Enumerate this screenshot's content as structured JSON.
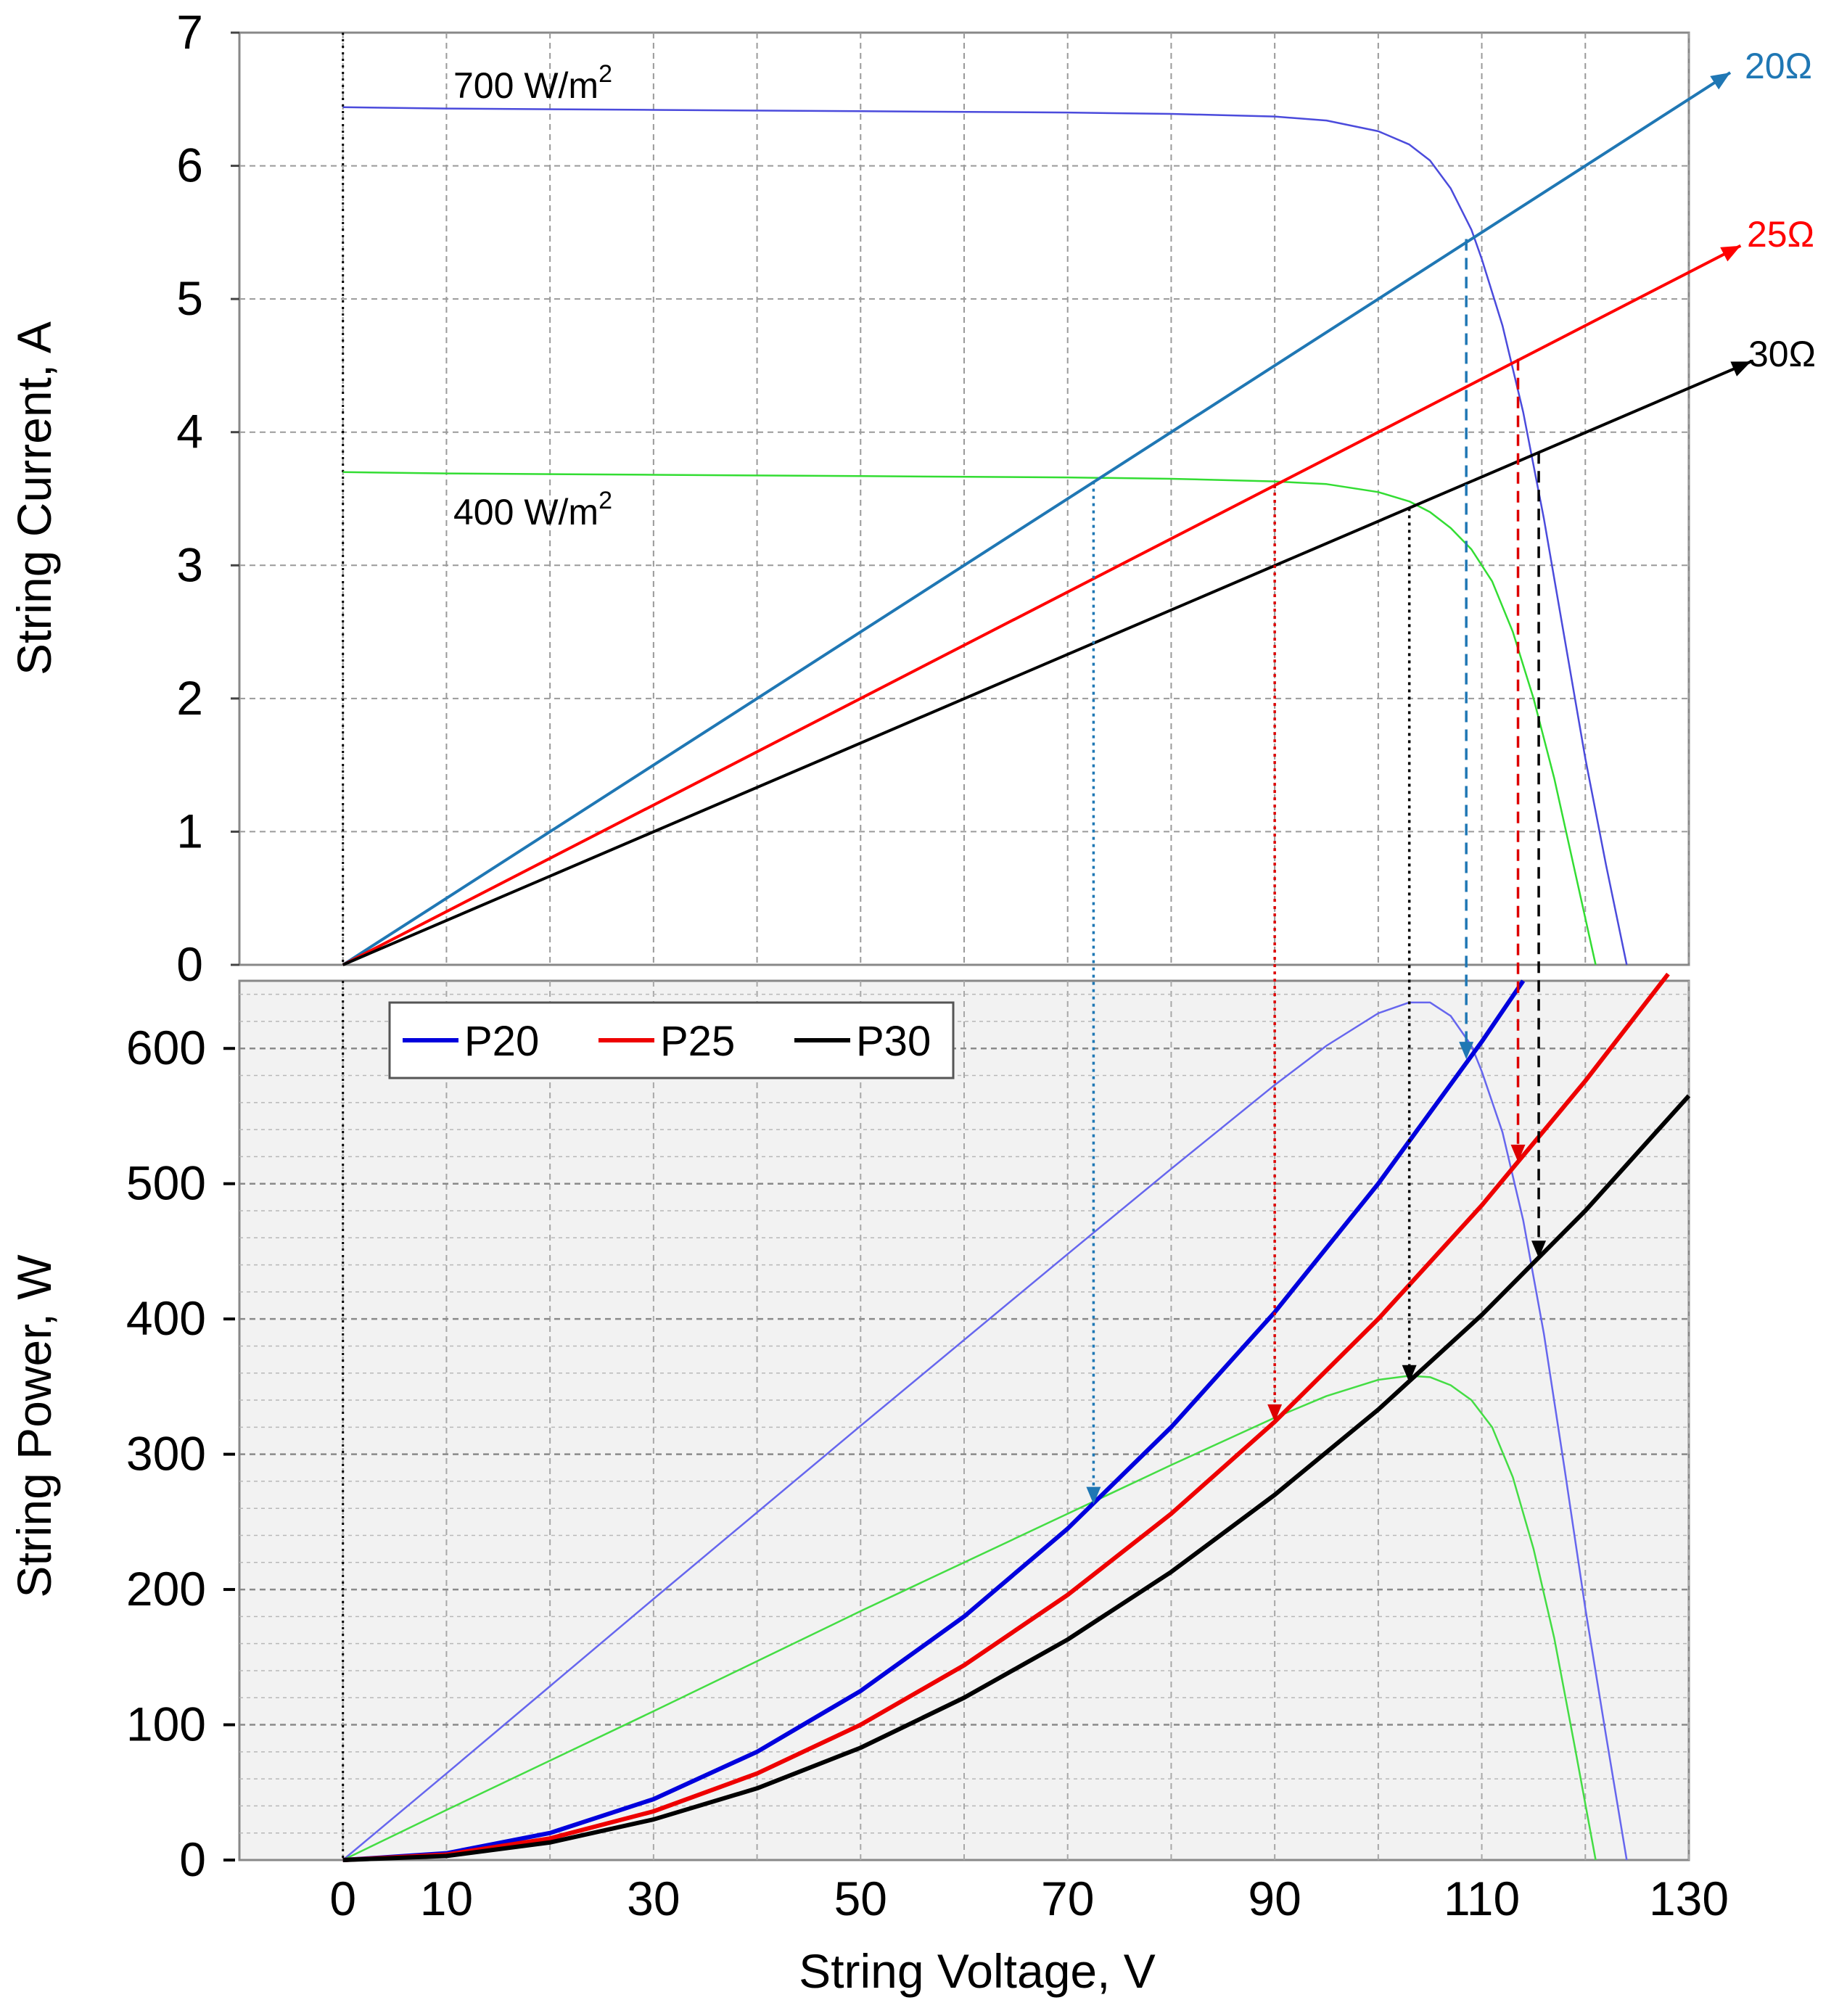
{
  "chart_data": [
    {
      "type": "line",
      "panel": "top",
      "ylabel": "String Current, A",
      "ylim": [
        0,
        7
      ],
      "xlim": [
        -10,
        130
      ],
      "yticks": [
        "0",
        "1",
        "2",
        "3",
        "4",
        "5",
        "6",
        "7"
      ],
      "grid": true,
      "series": [
        {
          "name": "700 W/m2",
          "color": "#4b4bdc",
          "x": [
            0,
            10,
            30,
            50,
            70,
            80,
            90,
            95,
            100,
            103,
            105,
            107,
            109,
            110,
            112,
            114,
            116,
            118,
            120,
            122,
            124
          ],
          "y": [
            6.44,
            6.43,
            6.42,
            6.41,
            6.4,
            6.39,
            6.37,
            6.34,
            6.26,
            6.16,
            6.04,
            5.83,
            5.52,
            5.3,
            4.8,
            4.15,
            3.35,
            2.45,
            1.55,
            0.75,
            0
          ]
        },
        {
          "name": "400 W/m2",
          "color": "#33dd33",
          "x": [
            0,
            10,
            30,
            50,
            70,
            80,
            90,
            95,
            100,
            103,
            105,
            107,
            109,
            111,
            113,
            115,
            117,
            119,
            121
          ],
          "y": [
            3.7,
            3.69,
            3.68,
            3.67,
            3.66,
            3.65,
            3.63,
            3.61,
            3.55,
            3.48,
            3.4,
            3.28,
            3.12,
            2.88,
            2.5,
            2.0,
            1.4,
            0.7,
            0
          ]
        },
        {
          "name": "20Ω",
          "color": "#1f77b4",
          "x": [
            0,
            134
          ],
          "y": [
            0,
            6.7
          ]
        },
        {
          "name": "25Ω",
          "color": "#ff0000",
          "x": [
            0,
            135
          ],
          "y": [
            0,
            5.4
          ]
        },
        {
          "name": "30Ω",
          "color": "#000000",
          "x": [
            0,
            136
          ],
          "y": [
            0,
            4.53
          ]
        }
      ],
      "annotations": [
        {
          "text": "700 W/m",
          "sup": "2"
        },
        {
          "text": "400 W/m",
          "sup": "2"
        },
        {
          "text": "20Ω",
          "color": "#1f77b4"
        },
        {
          "text": "25Ω",
          "color": "#ff0000"
        },
        {
          "text": "30Ω",
          "color": "#000000"
        }
      ]
    },
    {
      "type": "line",
      "panel": "bottom",
      "xlabel": "String Voltage, V",
      "ylabel": "String Power, W",
      "ylim": [
        0,
        650
      ],
      "xlim": [
        -10,
        130
      ],
      "yticks": [
        "0",
        "100",
        "200",
        "300",
        "400",
        "500",
        "600"
      ],
      "xticks": [
        "0",
        "10",
        "30",
        "50",
        "70",
        "90",
        "110",
        "130"
      ],
      "grid": true,
      "legend": "top-left",
      "series": [
        {
          "name": "P20",
          "color": "#0000dd",
          "x": [
            0,
            10,
            20,
            30,
            40,
            50,
            60,
            70,
            80,
            90,
            100,
            110,
            114
          ],
          "y": [
            0,
            5,
            20,
            45,
            80,
            125,
            180,
            245,
            320,
            405,
            500,
            605,
            650
          ]
        },
        {
          "name": "P25",
          "color": "#ee0000",
          "x": [
            0,
            10,
            20,
            30,
            40,
            50,
            60,
            70,
            80,
            90,
            100,
            110,
            120,
            128
          ],
          "y": [
            0,
            4,
            16,
            36,
            64,
            100,
            144,
            196,
            256,
            324,
            400,
            484,
            576,
            655
          ]
        },
        {
          "name": "P30",
          "color": "#000000",
          "x": [
            0,
            10,
            20,
            30,
            40,
            50,
            60,
            70,
            80,
            90,
            100,
            110,
            120,
            130
          ],
          "y": [
            0,
            3,
            13,
            30,
            53,
            83,
            120,
            163,
            213,
            270,
            333,
            403,
            480,
            565
          ]
        },
        {
          "name": "",
          "color": "#6666ee",
          "x": [
            0,
            10,
            30,
            50,
            70,
            80,
            90,
            95,
            100,
            103,
            105,
            107,
            109,
            110,
            112,
            114,
            116,
            118,
            120,
            122,
            124
          ],
          "y": [
            0,
            64,
            193,
            321,
            448,
            511,
            573,
            602,
            626,
            634,
            634,
            624,
            602,
            583,
            538,
            473,
            389,
            289,
            186,
            92,
            0
          ]
        },
        {
          "name": "",
          "color": "#44dd44",
          "x": [
            0,
            10,
            30,
            50,
            70,
            80,
            90,
            95,
            100,
            103,
            105,
            107,
            109,
            111,
            113,
            115,
            117,
            119,
            121
          ],
          "y": [
            0,
            37,
            110,
            184,
            256,
            292,
            327,
            343,
            355,
            358,
            357,
            351,
            340,
            320,
            283,
            230,
            164,
            83,
            0
          ]
        }
      ]
    }
  ],
  "drop_lines": [
    {
      "color": "#1f77b4",
      "dash": "dotted",
      "x": 72.5,
      "from_i": 3.63,
      "to_p": 263
    },
    {
      "color": "#dd0000",
      "dash": "dotted",
      "x": 90,
      "from_i": 3.6,
      "to_p": 324
    },
    {
      "color": "#000000",
      "dash": "dotted",
      "x": 103,
      "from_i": 3.43,
      "to_p": 353
    },
    {
      "color": "#1f77b4",
      "dash": "dashed",
      "x": 108.5,
      "from_i": 5.45,
      "to_p": 592
    },
    {
      "color": "#dd0000",
      "dash": "dashed",
      "x": 113.5,
      "from_i": 4.55,
      "to_p": 516
    },
    {
      "color": "#000000",
      "dash": "dashed",
      "x": 115.5,
      "from_i": 3.85,
      "to_p": 445
    }
  ]
}
